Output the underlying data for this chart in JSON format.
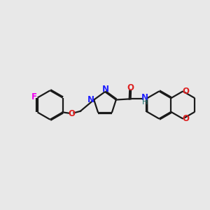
{
  "bg_color": "#e8e8e8",
  "bond_color": "#1a1a1a",
  "N_color": "#2020ff",
  "O_color": "#dd2020",
  "F_color": "#ee00ee",
  "H_color": "#207070",
  "line_width": 1.6,
  "dbo": 0.055,
  "figsize": [
    3.0,
    3.0
  ],
  "dpi": 100,
  "xlim": [
    -1.5,
    11.5
  ],
  "ylim": [
    2.5,
    8.5
  ],
  "label_fontsize": 8.5
}
